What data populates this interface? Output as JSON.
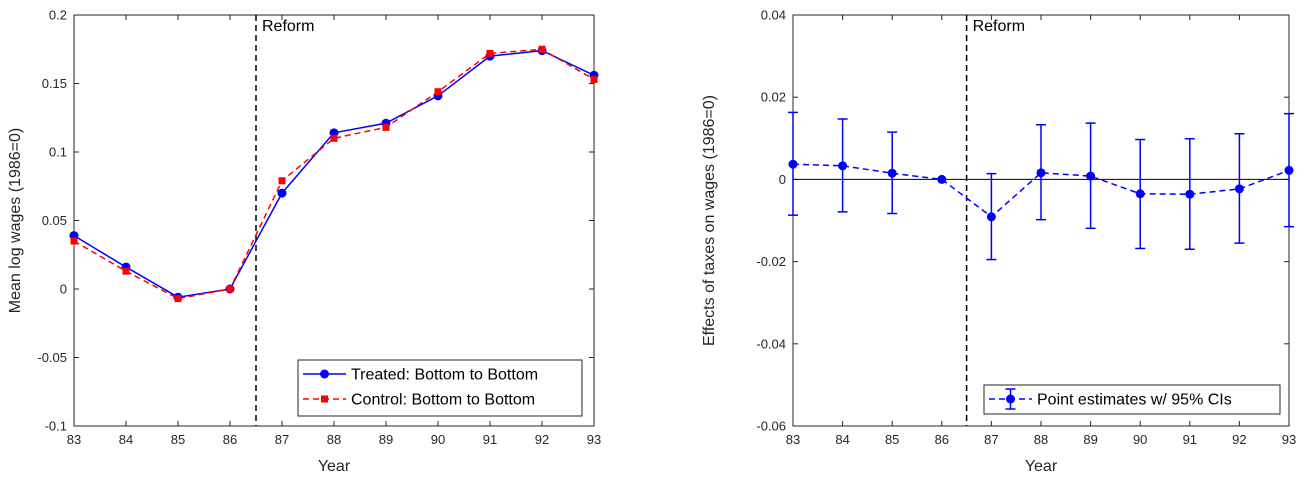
{
  "chart_data": [
    {
      "type": "line",
      "ylabel": "Mean log wages (1986=0)",
      "xlabel": "Year",
      "annotation": "Reform",
      "reform_x": 86.5,
      "xlim": [
        83,
        93
      ],
      "ylim": [
        -0.1,
        0.2
      ],
      "xticks": [
        83,
        84,
        85,
        86,
        87,
        88,
        89,
        90,
        91,
        92,
        93
      ],
      "yticks": [
        -0.1,
        -0.05,
        0,
        0.05,
        0.1,
        0.15,
        0.2
      ],
      "ytick_labels": [
        "-0.1",
        "-0.05",
        "0",
        "0.05",
        "0.1",
        "0.15",
        "0.2"
      ],
      "legend_position": "bottom-right",
      "grid": false,
      "x": [
        83,
        84,
        85,
        86,
        87,
        88,
        89,
        90,
        91,
        92,
        93
      ],
      "series": [
        {
          "name": "Treated: Bottom to Bottom",
          "color": "#0000ff",
          "line_style": "solid",
          "marker": "circle",
          "values": [
            0.039,
            0.016,
            -0.006,
            0.0,
            0.07,
            0.114,
            0.121,
            0.141,
            0.17,
            0.174,
            0.156
          ]
        },
        {
          "name": "Control: Bottom to Bottom",
          "color": "#ff0000",
          "line_style": "dashed",
          "marker": "square",
          "values": [
            0.035,
            0.013,
            -0.007,
            0.0,
            0.079,
            0.11,
            0.118,
            0.144,
            0.172,
            0.175,
            0.153
          ]
        }
      ]
    },
    {
      "type": "scatter",
      "ylabel": "Effects of taxes on wages (1986=0)",
      "xlabel": "Year",
      "annotation": "Reform",
      "reform_x": 86.5,
      "xlim": [
        83,
        93
      ],
      "ylim": [
        -0.06,
        0.04
      ],
      "xticks": [
        83,
        84,
        85,
        86,
        87,
        88,
        89,
        90,
        91,
        92,
        93
      ],
      "yticks": [
        -0.06,
        -0.04,
        -0.02,
        0,
        0.02,
        0.04
      ],
      "ytick_labels": [
        "-0.06",
        "-0.04",
        "-0.02",
        "0",
        "0.02",
        "0.04"
      ],
      "legend_position": "bottom-right",
      "grid": false,
      "zero_line": true,
      "x": [
        83,
        84,
        85,
        86,
        87,
        88,
        89,
        90,
        91,
        92,
        93
      ],
      "series": [
        {
          "name": "Point estimates w/ 95% CIs",
          "color": "#0000ff",
          "line_style": "dashed",
          "marker": "circle",
          "values": [
            0.0037,
            0.0033,
            0.0015,
            0.0,
            -0.0091,
            0.0016,
            0.0008,
            -0.0035,
            -0.0036,
            -0.0023,
            0.0022
          ],
          "ci_low": [
            -0.0087,
            -0.0079,
            -0.0083,
            null,
            -0.0195,
            -0.0098,
            -0.0119,
            -0.0168,
            -0.017,
            -0.0155,
            -0.0115
          ],
          "ci_high": [
            0.0163,
            0.0147,
            0.0115,
            null,
            0.0014,
            0.0133,
            0.0137,
            0.0097,
            0.0099,
            0.0111,
            0.016
          ]
        }
      ]
    }
  ]
}
